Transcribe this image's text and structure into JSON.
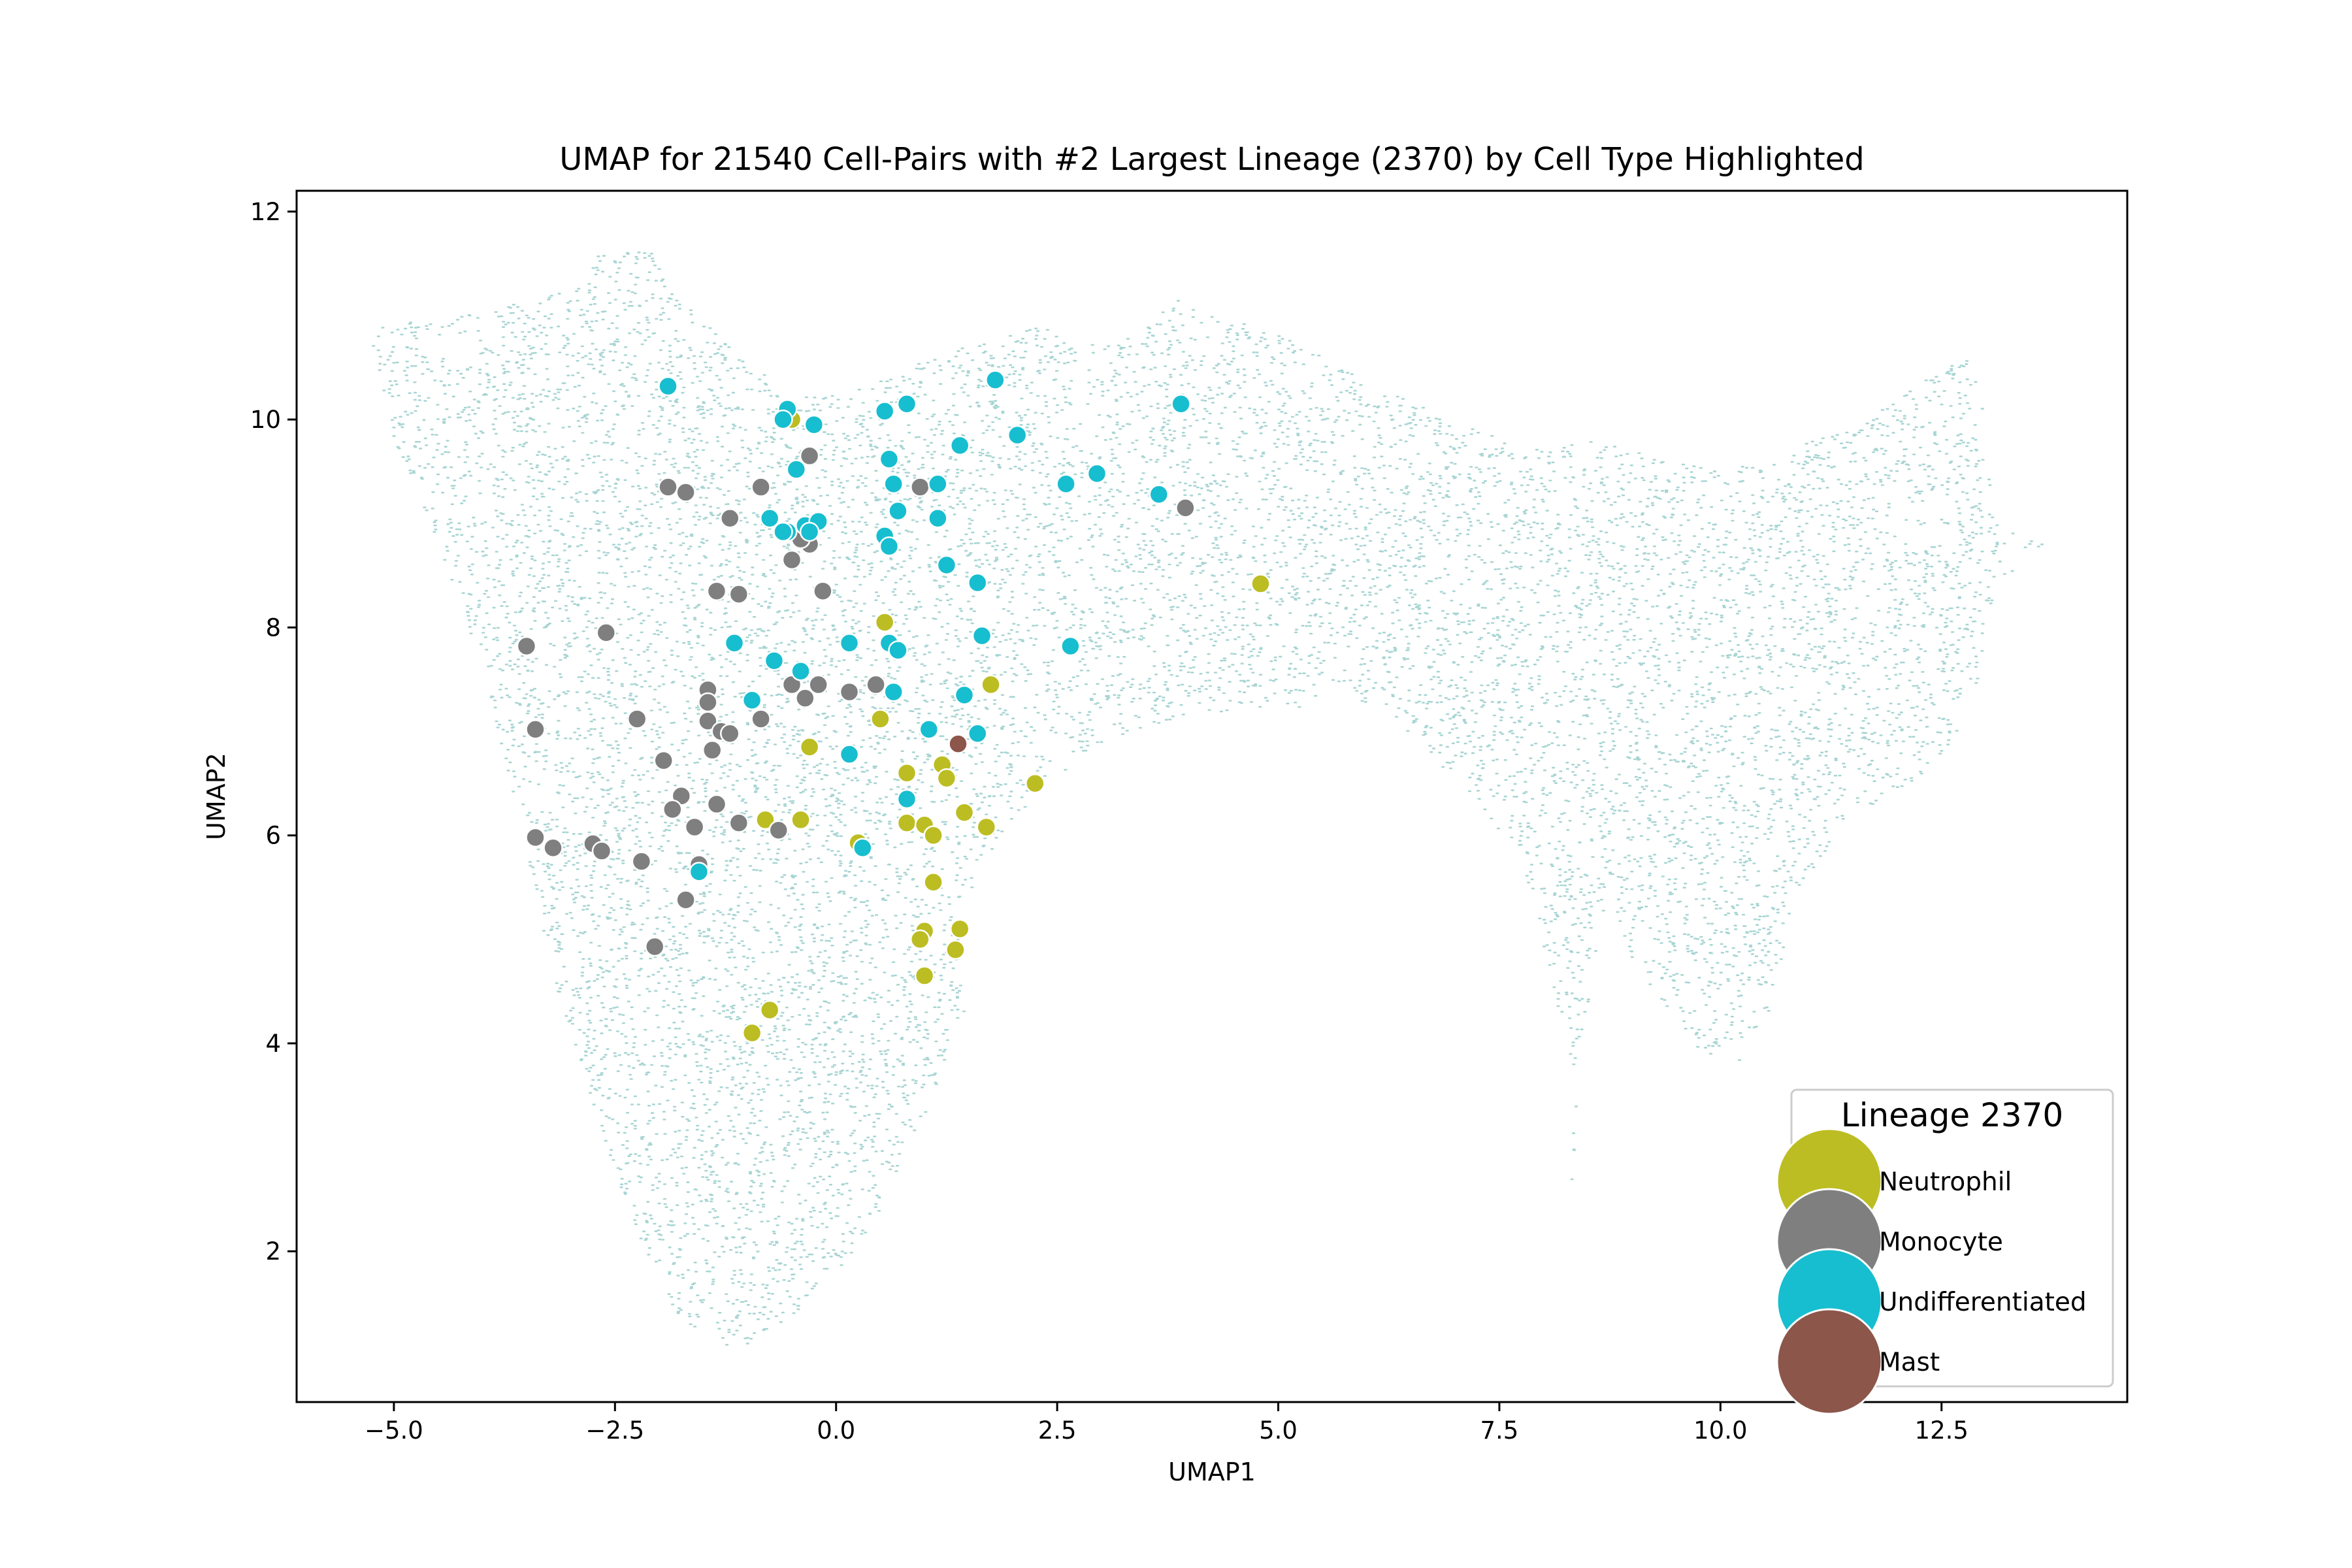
{
  "chart_data": {
    "type": "scatter",
    "title": "UMAP for 21540 Cell-Pairs with #2 Largest Lineage (2370) by Cell Type Highlighted",
    "xlabel": "UMAP1",
    "ylabel": "UMAP2",
    "xlim": [
      -6.1,
      14.6
    ],
    "ylim": [
      0.55,
      12.2
    ],
    "xticks": [
      -5.0,
      -2.5,
      0.0,
      2.5,
      5.0,
      7.5,
      10.0,
      12.5
    ],
    "xtick_labels": [
      "−5.0",
      "−2.5",
      "0.0",
      "2.5",
      "5.0",
      "7.5",
      "10.0",
      "12.5"
    ],
    "yticks": [
      2,
      4,
      6,
      8,
      10,
      12
    ],
    "ytick_labels": [
      "2",
      "4",
      "6",
      "8",
      "10",
      "12"
    ],
    "grid": false,
    "background": {
      "name": "all cell-pairs",
      "count": 21540,
      "color": "#a8d5d3",
      "shape_x": [
        -5.3,
        -4.2,
        -3.2,
        -2.6,
        -2.1,
        -1.6,
        -1.0,
        -0.6,
        -0.2,
        0.3,
        0.8,
        1.3,
        1.8,
        2.3,
        2.8,
        3.3,
        3.8,
        4.3,
        4.8,
        5.5,
        6.2,
        7.0,
        7.8,
        8.5,
        9.0,
        9.5,
        10.0,
        10.5,
        11.0,
        11.5,
        12.0,
        12.5,
        12.9,
        13.1,
        13.7,
        13.1,
        12.9,
        12.7,
        12.2,
        11.5,
        10.8,
        10.6,
        10.2,
        9.8,
        9.4,
        9.0,
        8.7,
        8.6,
        8.4,
        8.3,
        8.3,
        8.4,
        8.0,
        7.4,
        6.8,
        6.2,
        5.6,
        5.0,
        4.4,
        3.8,
        3.2,
        2.6,
        2.1,
        1.8,
        1.5,
        1.3,
        1.1,
        0.8,
        0.5,
        0.2,
        -0.2,
        -0.6,
        -1.0,
        -1.4,
        -1.8,
        -2.2,
        -2.6,
        -3.0,
        -3.3,
        -3.6,
        -4.0,
        -4.5,
        -5.0,
        -5.3
      ],
      "shape_y": [
        10.9,
        11.0,
        11.2,
        11.65,
        11.6,
        11.0,
        10.6,
        10.3,
        10.2,
        10.3,
        10.5,
        10.7,
        10.8,
        10.9,
        10.7,
        10.8,
        11.2,
        11.0,
        10.9,
        10.6,
        10.3,
        10.0,
        9.7,
        9.8,
        9.7,
        9.6,
        9.5,
        9.6,
        9.8,
        9.9,
        10.2,
        10.5,
        10.6,
        9.0,
        8.8,
        8.4,
        7.5,
        7.0,
        6.5,
        6.2,
        5.4,
        4.4,
        3.8,
        3.9,
        4.3,
        4.8,
        5.5,
        4.8,
        4.0,
        3.0,
        2.4,
        3.5,
        4.9,
        6.0,
        6.7,
        7.2,
        7.4,
        7.1,
        6.8,
        6.5,
        6.2,
        5.6,
        5.0,
        4.6,
        4.4,
        4.0,
        3.5,
        3.0,
        2.4,
        2.0,
        1.6,
        1.3,
        1.1,
        1.1,
        1.4,
        2.0,
        3.0,
        4.0,
        5.0,
        6.2,
        7.6,
        8.8,
        9.8,
        10.9
      ],
      "hole": {
        "cx": 4.7,
        "cy": 4.7,
        "rx": 3.3,
        "ry": 2.5
      }
    },
    "series": [
      {
        "name": "Neutrophil",
        "color": "#bcbd22",
        "x": [
          -0.5,
          0.55,
          4.8,
          1.75,
          0.5,
          -0.3,
          1.2,
          0.8,
          1.25,
          2.25,
          -0.8,
          -0.4,
          0.25,
          0.8,
          1.0,
          1.1,
          1.45,
          1.7,
          1.1,
          1.0,
          0.95,
          1.4,
          1.35,
          1.0,
          -0.75,
          -0.95
        ],
        "y": [
          10.0,
          8.05,
          8.42,
          7.45,
          7.12,
          6.85,
          6.68,
          6.6,
          6.55,
          6.5,
          6.15,
          6.15,
          5.93,
          6.12,
          6.1,
          6.0,
          6.22,
          6.08,
          5.55,
          5.08,
          5.0,
          5.1,
          4.9,
          4.65,
          4.32,
          4.1
        ]
      },
      {
        "name": "Monocyte",
        "color": "#7f7f7f",
        "x": [
          -0.3,
          -1.9,
          -1.7,
          -0.85,
          -1.2,
          -0.3,
          0.95,
          3.95,
          -0.4,
          -0.5,
          -0.15,
          -1.35,
          -1.1,
          -3.5,
          -2.6,
          -1.45,
          -0.5,
          -0.2,
          -0.35,
          0.15,
          0.45,
          -2.25,
          -1.45,
          -1.45,
          -1.3,
          -0.85,
          -1.4,
          -1.2,
          -3.4,
          -1.95,
          -1.75,
          -1.85,
          -1.35,
          -1.1,
          -1.6,
          -0.65,
          -3.4,
          -2.75,
          -3.2,
          -2.65,
          -1.55,
          -2.2,
          -1.7,
          -2.05
        ],
        "y": [
          9.65,
          9.35,
          9.3,
          9.35,
          9.05,
          8.8,
          9.35,
          9.15,
          8.85,
          8.65,
          8.35,
          8.35,
          8.32,
          7.82,
          7.95,
          7.4,
          7.45,
          7.45,
          7.32,
          7.38,
          7.45,
          7.12,
          7.28,
          7.1,
          7.0,
          7.12,
          6.82,
          6.98,
          7.02,
          6.72,
          6.38,
          6.25,
          6.3,
          6.12,
          6.08,
          6.05,
          5.98,
          5.92,
          5.88,
          5.85,
          5.72,
          5.75,
          5.38,
          4.93
        ]
      },
      {
        "name": "Undifferentiated",
        "color": "#17becf",
        "x": [
          -1.9,
          -0.55,
          -0.6,
          -0.25,
          0.55,
          0.8,
          1.8,
          3.9,
          2.05,
          0.6,
          1.4,
          -0.45,
          0.65,
          1.15,
          2.6,
          2.95,
          3.65,
          0.7,
          -0.75,
          -0.55,
          -0.35,
          -0.2,
          -0.3,
          -0.6,
          0.55,
          0.6,
          1.15,
          1.25,
          1.6,
          -1.15,
          1.65,
          2.65,
          0.15,
          0.6,
          0.7,
          -0.7,
          -0.4,
          0.65,
          1.45,
          -0.95,
          1.05,
          1.6,
          0.15,
          0.8,
          0.3,
          -1.55
        ],
        "y": [
          10.32,
          10.1,
          10.0,
          9.95,
          10.08,
          10.15,
          10.38,
          10.15,
          9.85,
          9.62,
          9.75,
          9.52,
          9.38,
          9.38,
          9.38,
          9.48,
          9.28,
          9.12,
          9.05,
          8.92,
          8.98,
          9.02,
          8.92,
          8.92,
          8.88,
          8.78,
          9.05,
          8.6,
          8.43,
          7.85,
          7.92,
          7.82,
          7.85,
          7.85,
          7.78,
          7.68,
          7.58,
          7.38,
          7.35,
          7.3,
          7.02,
          6.98,
          6.78,
          6.35,
          5.88,
          5.65
        ]
      },
      {
        "name": "Mast",
        "color": "#8c564b",
        "x": [
          1.38
        ],
        "y": [
          6.88
        ]
      }
    ],
    "legend": {
      "title": "Lineage 2370",
      "placement": "lower right",
      "entries": [
        "Neutrophil",
        "Monocyte",
        "Undifferentiated",
        "Mast"
      ]
    }
  }
}
